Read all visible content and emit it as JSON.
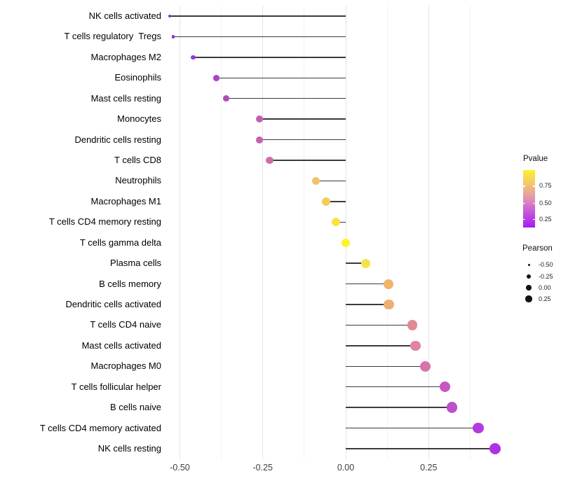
{
  "chart_data": {
    "type": "scatter",
    "variant": "lollipop",
    "orientation": "horizontal",
    "title": "",
    "xlabel": "",
    "ylabel": "",
    "grid": "vertical-only",
    "xlim": [
      -0.585,
      0.5
    ],
    "baseline": 0,
    "x_ticks": [
      {
        "label": "-0.50",
        "value": -0.5
      },
      {
        "label": "-0.25",
        "value": -0.25
      },
      {
        "label": "0.00",
        "value": 0
      },
      {
        "label": "0.25",
        "value": 0.25
      }
    ],
    "x_minor_gridlines": [
      -0.375,
      -0.125,
      0.125,
      0.375
    ],
    "points": [
      {
        "label": "NK cells activated",
        "pearson": -0.53,
        "color": "#8f2bdb",
        "radius": 2.0
      },
      {
        "label": "T cells regulatory  Tregs",
        "pearson": -0.52,
        "color": "#8f2bdb",
        "radius": 2.1
      },
      {
        "label": "Macrophages M2",
        "pearson": -0.46,
        "color": "#9c36cf",
        "radius": 3.3
      },
      {
        "label": "Eosinophils",
        "pearson": -0.39,
        "color": "#aa45c5",
        "radius": 4.3
      },
      {
        "label": "Mast cells resting",
        "pearson": -0.36,
        "color": "#b14cbd",
        "radius": 4.4
      },
      {
        "label": "Monocytes",
        "pearson": -0.26,
        "color": "#c45fb0",
        "radius": 5.0
      },
      {
        "label": "Dendritic cells resting",
        "pearson": -0.26,
        "color": "#c460b1",
        "radius": 5.0
      },
      {
        "label": "T cells CD8",
        "pearson": -0.23,
        "color": "#cd6fa4",
        "radius": 5.3
      },
      {
        "label": "Neutrophils",
        "pearson": -0.09,
        "color": "#eec26e",
        "radius": 5.9
      },
      {
        "label": "Macrophages M1",
        "pearson": -0.06,
        "color": "#f2cd5e",
        "radius": 6.0
      },
      {
        "label": "T cells CD4 memory resting",
        "pearson": -0.03,
        "color": "#f8e244",
        "radius": 6.1
      },
      {
        "label": "T cells gamma delta",
        "pearson": 0.0,
        "color": "#fdf32b",
        "radius": 6.2
      },
      {
        "label": "Plasma cells",
        "pearson": 0.06,
        "color": "#f6e14b",
        "radius": 6.6
      },
      {
        "label": "B cells memory",
        "pearson": 0.13,
        "color": "#f0b46a",
        "radius": 7.0
      },
      {
        "label": "Dendritic cells activated",
        "pearson": 0.13,
        "color": "#efad72",
        "radius": 7.1
      },
      {
        "label": "T cells CD4 naive",
        "pearson": 0.2,
        "color": "#e18a92",
        "radius": 7.1
      },
      {
        "label": "Mast cells activated",
        "pearson": 0.21,
        "color": "#e0859d",
        "radius": 7.2
      },
      {
        "label": "Macrophages M0",
        "pearson": 0.24,
        "color": "#d674a8",
        "radius": 7.5
      },
      {
        "label": "T cells follicular helper",
        "pearson": 0.3,
        "color": "#c556c4",
        "radius": 7.6
      },
      {
        "label": "B cells naive",
        "pearson": 0.32,
        "color": "#bd4fcb",
        "radius": 7.7
      },
      {
        "label": "T cells CD4 memory activated",
        "pearson": 0.4,
        "color": "#b33be0",
        "radius": 7.9
      },
      {
        "label": "NK cells resting",
        "pearson": 0.45,
        "color": "#ac32e4",
        "radius": 8.1
      }
    ],
    "legends": {
      "pvalue": {
        "title": "Pvalue",
        "ticks": [
          "0.75",
          "0.50",
          "0.25"
        ],
        "gradient_top_to_bottom": [
          "#fcf12e",
          "#f3c46c",
          "#e093b4",
          "#c353dd",
          "#a81bf2"
        ]
      },
      "pearson": {
        "title": "Pearson",
        "items": [
          {
            "label": "-0.50",
            "diameter": 3.0
          },
          {
            "label": "-0.25",
            "diameter": 6.3
          },
          {
            "label": "0.00",
            "diameter": 7.7
          },
          {
            "label": "0.25",
            "diameter": 9.3
          }
        ]
      }
    },
    "stem_color": "#3b3b3b"
  }
}
